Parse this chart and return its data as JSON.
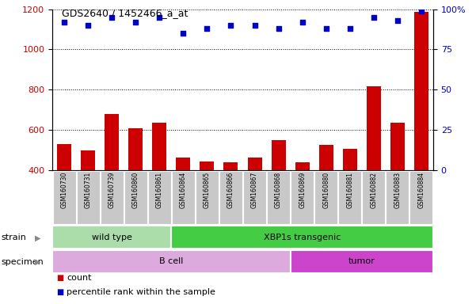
{
  "title": "GDS2640 / 1452466_a_at",
  "samples": [
    "GSM160730",
    "GSM160731",
    "GSM160739",
    "GSM160860",
    "GSM160861",
    "GSM160864",
    "GSM160865",
    "GSM160866",
    "GSM160867",
    "GSM160868",
    "GSM160869",
    "GSM160880",
    "GSM160881",
    "GSM160882",
    "GSM160883",
    "GSM160884"
  ],
  "counts": [
    530,
    500,
    680,
    607,
    635,
    462,
    442,
    440,
    463,
    550,
    440,
    527,
    505,
    815,
    635,
    1185
  ],
  "percentiles": [
    92,
    90,
    95,
    92,
    95,
    85,
    88,
    90,
    90,
    88,
    92,
    88,
    88,
    95,
    93,
    99
  ],
  "ylim_left": [
    400,
    1200
  ],
  "ylim_right": [
    0,
    100
  ],
  "yticks_left": [
    400,
    600,
    800,
    1000,
    1200
  ],
  "yticks_right": [
    0,
    25,
    50,
    75,
    100
  ],
  "bar_color": "#cc0000",
  "dot_color": "#0000cc",
  "bar_baseline": 400,
  "strain_groups": [
    {
      "label": "wild type",
      "start": 0,
      "end": 5,
      "color": "#aaddaa"
    },
    {
      "label": "XBP1s transgenic",
      "start": 5,
      "end": 16,
      "color": "#44cc44"
    }
  ],
  "specimen_groups": [
    {
      "label": "B cell",
      "start": 0,
      "end": 10,
      "color": "#ddaadd"
    },
    {
      "label": "tumor",
      "start": 10,
      "end": 16,
      "color": "#cc44cc"
    }
  ],
  "legend_count_label": "count",
  "legend_pct_label": "percentile rank within the sample",
  "background_color": "#ffffff",
  "grid_color": "#000000",
  "tick_label_bg": "#c8c8c8",
  "strain_label": "strain",
  "specimen_label": "specimen"
}
